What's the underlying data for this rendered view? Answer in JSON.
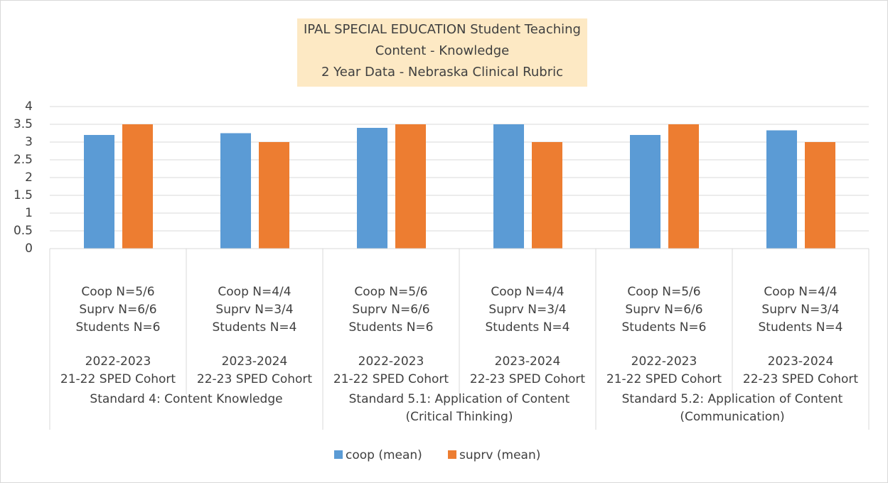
{
  "chart_data": {
    "type": "bar",
    "title_lines": [
      "IPAL SPECIAL EDUCATION  Student Teaching",
      "Content - Knowledge",
      "2 Year Data - Nebraska Clinical Rubric"
    ],
    "categories": [
      [
        "Coop N=5/6",
        "Suprv N=6/6",
        "Students N=6",
        "2022-2023",
        "21-22 SPED Cohort"
      ],
      [
        "Coop N=4/4",
        "Suprv N=3/4",
        "Students N=4",
        "2023-2024",
        "22-23 SPED Cohort"
      ],
      [
        "Coop N=5/6",
        "Suprv N=6/6",
        "Students N=6",
        "2022-2023",
        "21-22 SPED Cohort"
      ],
      [
        "Coop N=4/4",
        "Suprv N=3/4",
        "Students N=4",
        "2023-2024",
        "22-23 SPED Cohort"
      ],
      [
        "Coop N=5/6",
        "Suprv N=6/6",
        "Students N=6",
        "2022-2023",
        "21-22 SPED Cohort"
      ],
      [
        "Coop N=4/4",
        "Suprv N=3/4",
        "Students N=4",
        "2023-2024",
        "22-23 SPED Cohort"
      ]
    ],
    "groups": [
      [
        "Standard 4: Content Knowledge"
      ],
      [
        "Standard 5.1: Application of Content",
        "(Critical Thinking)"
      ],
      [
        "Standard 5.2: Application of Content",
        "(Communication)"
      ]
    ],
    "series": [
      {
        "name": "coop (mean)",
        "color": "#5b9bd5",
        "values": [
          3.2,
          3.25,
          3.4,
          3.5,
          3.2,
          3.33
        ]
      },
      {
        "name": "suprv (mean)",
        "color": "#ed7d31",
        "values": [
          3.5,
          3.0,
          3.5,
          3.0,
          3.5,
          3.0
        ]
      }
    ],
    "ylim": [
      0,
      4
    ],
    "yticks": [
      0,
      0.5,
      1,
      1.5,
      2,
      2.5,
      3,
      3.5,
      4
    ],
    "grid": true,
    "legend": "bottom"
  }
}
